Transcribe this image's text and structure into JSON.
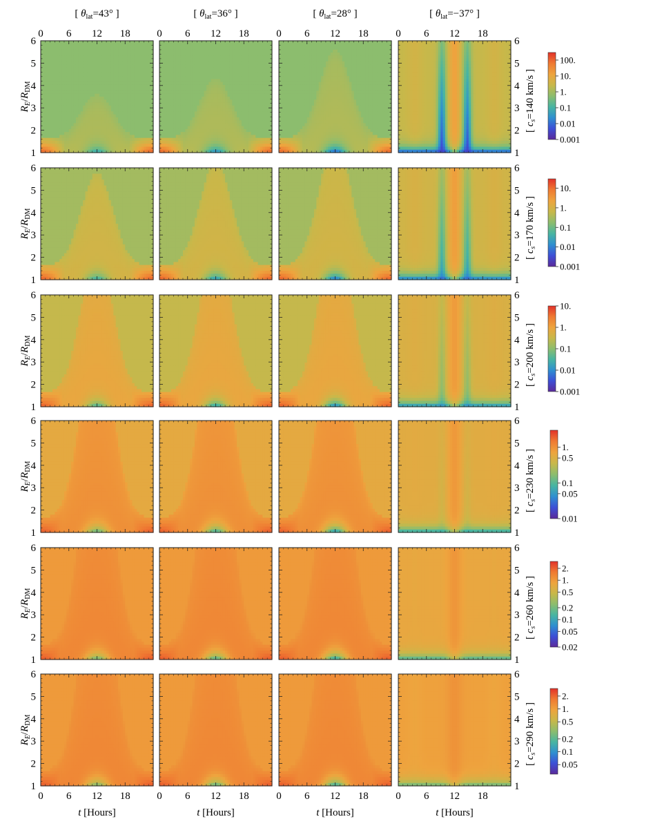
{
  "chart_data": {
    "type": "heatmap",
    "layout": "6 rows x 4 columns of density maps with one colorbar per row",
    "x_axis": {
      "label_italic": "t",
      "label_rest": " [Hours]",
      "range": [
        0,
        24
      ],
      "ticks": [
        0,
        6,
        12,
        18
      ],
      "tick_labels": [
        "0",
        "6",
        "12",
        "18"
      ]
    },
    "y_axis": {
      "label_R": "R",
      "label_E": "E",
      "label_slash": "/",
      "label_R2": "R",
      "label_DM": "DM",
      "range": [
        1,
        6
      ],
      "ticks": [
        1,
        2,
        3,
        4,
        5,
        6
      ],
      "tick_labels": [
        "1",
        "2",
        "3",
        "4",
        "5",
        "6"
      ]
    },
    "columns": [
      {
        "open": "[ ",
        "theta": "θ",
        "sub": "lat",
        "value": "=43°",
        "close": " ]",
        "lat_deg": 43
      },
      {
        "open": "[ ",
        "theta": "θ",
        "sub": "lat",
        "value": "=36°",
        "close": " ]",
        "lat_deg": 36
      },
      {
        "open": "[ ",
        "theta": "θ",
        "sub": "lat",
        "value": "=28°",
        "close": " ]",
        "lat_deg": 28
      },
      {
        "open": "[ ",
        "theta": "θ",
        "sub": "lat",
        "value": "=−37°",
        "close": " ]",
        "lat_deg": -37
      }
    ],
    "rows": [
      {
        "label_open": "[ ",
        "label_c": "c",
        "label_s": "s",
        "label_value": "=140 km/s",
        "label_close": " ]",
        "cs_kms": 140,
        "colorbar": {
          "scale": "log",
          "min": 0.001,
          "max": 300,
          "tick_values": [
            100,
            10,
            1,
            0.1,
            0.01,
            0.001
          ],
          "tick_labels": [
            "100.",
            "10.",
            "1.",
            "0.1",
            "0.01",
            "0.001"
          ]
        }
      },
      {
        "label_open": "[ ",
        "label_c": "c",
        "label_s": "s",
        "label_value": "=170 km/s",
        "label_close": " ]",
        "cs_kms": 170,
        "colorbar": {
          "scale": "log",
          "min": 0.001,
          "max": 30,
          "tick_values": [
            10,
            1,
            0.1,
            0.01,
            0.001
          ],
          "tick_labels": [
            "10.",
            "1.",
            "0.1",
            "0.01",
            "0.001"
          ]
        }
      },
      {
        "label_open": "[ ",
        "label_c": "c",
        "label_s": "s",
        "label_value": "=200 km/s",
        "label_close": " ]",
        "cs_kms": 200,
        "colorbar": {
          "scale": "log",
          "min": 0.001,
          "max": 10,
          "tick_values": [
            10,
            1,
            0.1,
            0.01,
            0.001
          ],
          "tick_labels": [
            "10.",
            "1.",
            "0.1",
            "0.01",
            "0.001"
          ]
        }
      },
      {
        "label_open": "[ ",
        "label_c": "c",
        "label_s": "s",
        "label_value": "=230 km/s",
        "label_close": " ]",
        "cs_kms": 230,
        "colorbar": {
          "scale": "log",
          "min": 0.01,
          "max": 3,
          "tick_values": [
            1,
            0.5,
            0.1,
            0.05,
            0.01
          ],
          "tick_labels": [
            "1.",
            "0.5",
            "0.1",
            "0.05",
            "0.01"
          ]
        }
      },
      {
        "label_open": "[ ",
        "label_c": "c",
        "label_s": "s",
        "label_value": "=260 km/s",
        "label_close": " ]",
        "cs_kms": 260,
        "colorbar": {
          "scale": "log",
          "min": 0.02,
          "max": 3,
          "tick_values": [
            2,
            1,
            0.5,
            0.2,
            0.1,
            0.05,
            0.02
          ],
          "tick_labels": [
            "2.",
            "1.",
            "0.5",
            "0.2",
            "0.1",
            "0.05",
            "0.02"
          ]
        }
      },
      {
        "label_open": "[ ",
        "label_c": "c",
        "label_s": "s",
        "label_value": "=290 km/s",
        "label_close": " ]",
        "cs_kms": 290,
        "colorbar": {
          "scale": "log",
          "min": 0.03,
          "max": 3,
          "tick_values": [
            2,
            1,
            0.5,
            0.2,
            0.1,
            0.05
          ],
          "tick_labels": [
            "2.",
            "1.",
            "0.5",
            "0.2",
            "0.1",
            "0.05"
          ]
        }
      }
    ],
    "colormap": [
      "#5b2a9a",
      "#3d4fd6",
      "#2f8fd0",
      "#48b5a2",
      "#8cbd6e",
      "#c8b84a",
      "#eea43e",
      "#ef7a32",
      "#e2322a"
    ],
    "colormap_name": "rainbow"
  }
}
